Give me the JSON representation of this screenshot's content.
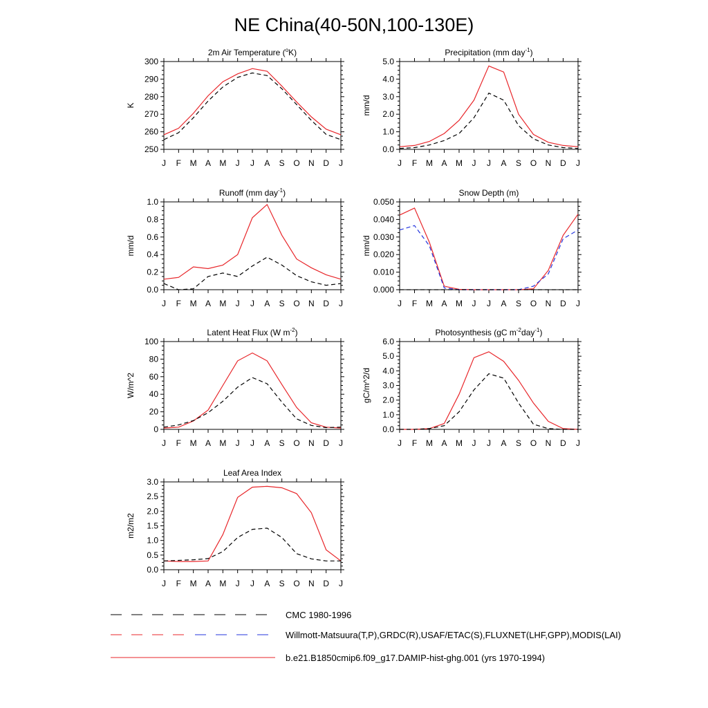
{
  "title": "NE China(40-50N,100-130E)",
  "months": [
    "J",
    "F",
    "M",
    "A",
    "M",
    "J",
    "J",
    "A",
    "S",
    "O",
    "N",
    "D",
    "J"
  ],
  "colors": {
    "model": "#e8262a",
    "obs": "#000000",
    "obs_alt": "#2233dd",
    "axis": "#000000"
  },
  "chart_data": [
    {
      "id": "tsa",
      "type": "line",
      "title": "2m Air Temperature (",
      "title_sup": "o",
      "title_tail": "K)",
      "ylabel": "K",
      "ylim": [
        250,
        300
      ],
      "yticks": [
        "250",
        "260",
        "270",
        "280",
        "290",
        "300"
      ],
      "yvalues": [
        250,
        260,
        270,
        280,
        290,
        300
      ],
      "series": [
        {
          "role": "model",
          "values": [
            258.3,
            262.0,
            270.5,
            280.5,
            288.5,
            293.0,
            296.0,
            294.5,
            286.0,
            277.0,
            268.5,
            261.5,
            258.3
          ]
        },
        {
          "role": "obs",
          "values": [
            255.5,
            259.5,
            268.0,
            277.5,
            285.5,
            291.0,
            293.5,
            292.0,
            284.5,
            275.5,
            266.5,
            258.5,
            255.5
          ]
        }
      ]
    },
    {
      "id": "prect",
      "type": "line",
      "title": "Precipitation (mm day",
      "title_sup": "-1",
      "title_tail": ")",
      "ylabel": "mm/d",
      "ylim": [
        0,
        5
      ],
      "yticks": [
        "0.0",
        "1.0",
        "2.0",
        "3.0",
        "4.0",
        "5.0"
      ],
      "yvalues": [
        0,
        1,
        2,
        3,
        4,
        5
      ],
      "series": [
        {
          "role": "model",
          "values": [
            0.15,
            0.22,
            0.45,
            0.9,
            1.65,
            2.8,
            4.75,
            4.4,
            2.0,
            0.85,
            0.4,
            0.22,
            0.15
          ]
        },
        {
          "role": "obs",
          "values": [
            0.05,
            0.1,
            0.25,
            0.5,
            0.9,
            1.8,
            3.2,
            2.8,
            1.35,
            0.6,
            0.25,
            0.1,
            0.05
          ]
        }
      ]
    },
    {
      "id": "runoff",
      "type": "line",
      "title": "Runoff (mm day",
      "title_sup": "-1",
      "title_tail": ")",
      "ylabel": "mm/d",
      "ylim": [
        0,
        1
      ],
      "yticks": [
        "0.0",
        "0.2",
        "0.4",
        "0.6",
        "0.8",
        "1.0"
      ],
      "yvalues": [
        0,
        0.2,
        0.4,
        0.6,
        0.8,
        1.0
      ],
      "series": [
        {
          "role": "model",
          "values": [
            0.12,
            0.14,
            0.26,
            0.24,
            0.28,
            0.4,
            0.82,
            0.97,
            0.62,
            0.35,
            0.25,
            0.17,
            0.12
          ]
        },
        {
          "role": "obs",
          "values": [
            0.07,
            0.0,
            0.01,
            0.15,
            0.19,
            0.15,
            0.27,
            0.37,
            0.28,
            0.16,
            0.09,
            0.05,
            0.07
          ]
        }
      ]
    },
    {
      "id": "snowdp",
      "type": "line",
      "title": "Snow Depth (m)",
      "title_sup": "",
      "title_tail": "",
      "ylabel": "mm/d",
      "ylim": [
        0,
        0.05
      ],
      "yticks": [
        "0.000",
        "0.010",
        "0.020",
        "0.030",
        "0.040",
        "0.050"
      ],
      "yvalues": [
        0,
        0.01,
        0.02,
        0.03,
        0.04,
        0.05
      ],
      "series": [
        {
          "role": "model",
          "values": [
            0.0425,
            0.0465,
            0.027,
            0.002,
            0.0002,
            0.0,
            0.0,
            0.0,
            0.0,
            0.0005,
            0.011,
            0.031,
            0.043
          ]
        },
        {
          "role": "obs_alt",
          "values": [
            0.034,
            0.0365,
            0.025,
            0.001,
            0.0,
            0.0,
            0.0,
            0.0,
            0.0,
            0.002,
            0.009,
            0.029,
            0.034
          ]
        },
        {
          "role": "obs",
          "values": [
            0.0,
            0.0,
            0.0,
            0.0,
            0.0,
            0.0,
            0.0,
            0.0,
            0.0,
            0.0,
            0.0,
            0.0,
            0.0
          ]
        }
      ]
    },
    {
      "id": "lhf",
      "type": "line",
      "title": "Latent Heat Flux (W m",
      "title_sup": "-2",
      "title_tail": ")",
      "ylabel": "W/m^2",
      "ylim": [
        0,
        100
      ],
      "yticks": [
        "0",
        "20",
        "40",
        "60",
        "80",
        "100"
      ],
      "yvalues": [
        0,
        20,
        40,
        60,
        80,
        100
      ],
      "series": [
        {
          "role": "model",
          "values": [
            1.5,
            2.5,
            9.5,
            22.0,
            50.0,
            78.0,
            87.0,
            78.0,
            51.0,
            25.0,
            7.5,
            2.5,
            1.5
          ]
        },
        {
          "role": "obs",
          "values": [
            2.5,
            5.0,
            10.0,
            19.0,
            32.0,
            48.0,
            59.0,
            52.0,
            31.0,
            12.0,
            4.5,
            2.0,
            2.5
          ]
        }
      ]
    },
    {
      "id": "gpp",
      "type": "line",
      "title": "Photosynthesis (gC m",
      "title_sup": "-2",
      "title_tail": "day",
      "title_sup2": "-1",
      "title_tail2": ")",
      "ylabel": "gC/m^2/d",
      "ylim": [
        0,
        6
      ],
      "yticks": [
        "0.0",
        "1.0",
        "2.0",
        "3.0",
        "4.0",
        "5.0",
        "6.0"
      ],
      "yvalues": [
        0,
        1,
        2,
        3,
        4,
        5,
        6
      ],
      "series": [
        {
          "role": "model",
          "values": [
            0.0,
            0.0,
            0.05,
            0.4,
            2.4,
            4.9,
            5.3,
            4.65,
            3.35,
            1.8,
            0.55,
            0.05,
            0.0
          ]
        },
        {
          "role": "obs",
          "values": [
            0.0,
            0.0,
            0.05,
            0.25,
            1.2,
            2.7,
            3.8,
            3.5,
            1.8,
            0.35,
            0.05,
            0.0,
            0.0
          ]
        }
      ]
    },
    {
      "id": "lai",
      "type": "line",
      "title": "Leaf Area Index",
      "title_sup": "",
      "title_tail": "",
      "ylabel": "m2/m2",
      "ylim": [
        0,
        3
      ],
      "yticks": [
        "0.0",
        "0.5",
        "1.0",
        "1.5",
        "2.0",
        "2.5",
        "3.0"
      ],
      "yvalues": [
        0,
        0.5,
        1.0,
        1.5,
        2.0,
        2.5,
        3.0
      ],
      "series": [
        {
          "role": "model",
          "values": [
            0.3,
            0.28,
            0.28,
            0.3,
            1.2,
            2.47,
            2.82,
            2.85,
            2.8,
            2.6,
            1.95,
            0.68,
            0.3
          ]
        },
        {
          "role": "obs",
          "values": [
            0.3,
            0.32,
            0.34,
            0.38,
            0.62,
            1.1,
            1.38,
            1.42,
            1.1,
            0.55,
            0.37,
            0.3,
            0.3
          ]
        }
      ]
    }
  ],
  "legend": [
    {
      "role": "obs",
      "label": "CMC 1980-1996"
    },
    {
      "role": "obs_alt",
      "label": "Willmott-Matsuura(T,P),GRDC(R),USAF/ETAC(S),FLUXNET(LHF,GPP),MODIS(LAI)"
    },
    {
      "role": "model",
      "label": "b.e21.B1850cmip6.f09_g17.DAMIP-hist-ghg.001 (yrs 1970-1994)"
    }
  ]
}
